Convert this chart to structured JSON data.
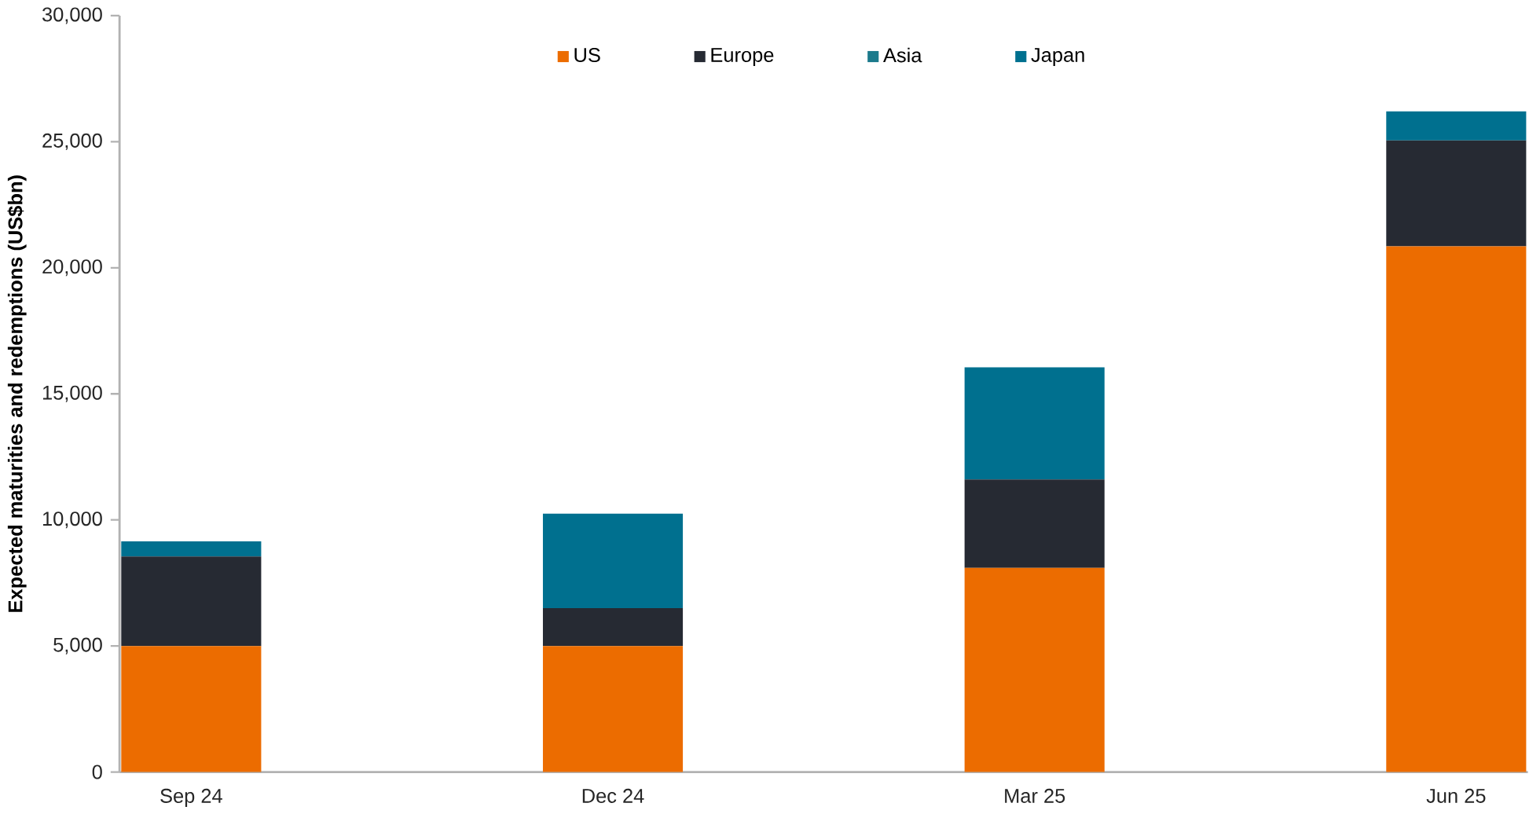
{
  "chart_data": {
    "type": "bar",
    "stacked": true,
    "ylabel": "Expected maturities and redemptions (US$bn)",
    "categories": [
      "Sep 24",
      "Dec 24",
      "Mar 25",
      "Jun 25"
    ],
    "series": [
      {
        "name": "US",
        "color": "#ec6c00",
        "values": [
          5000,
          5000,
          8100,
          20850
        ]
      },
      {
        "name": "Europe",
        "color": "#262a33",
        "values": [
          3550,
          1500,
          3500,
          4200
        ]
      },
      {
        "name": "Asia",
        "color": "#1b7a8c",
        "values": [
          0,
          0,
          0,
          0
        ]
      },
      {
        "name": "Japan",
        "color": "#00708f",
        "values": [
          600,
          3750,
          4450,
          1150
        ]
      }
    ],
    "ylim": [
      0,
      30000
    ],
    "yticks": [
      {
        "value": 0,
        "label": "0"
      },
      {
        "value": 5000,
        "label": "5,000"
      },
      {
        "value": 10000,
        "label": "10,000"
      },
      {
        "value": 15000,
        "label": "15,000"
      },
      {
        "value": 20000,
        "label": "20,000"
      },
      {
        "value": 25000,
        "label": "25,000"
      },
      {
        "value": 30000,
        "label": "30,000"
      }
    ],
    "grid": false,
    "legend": "top"
  }
}
